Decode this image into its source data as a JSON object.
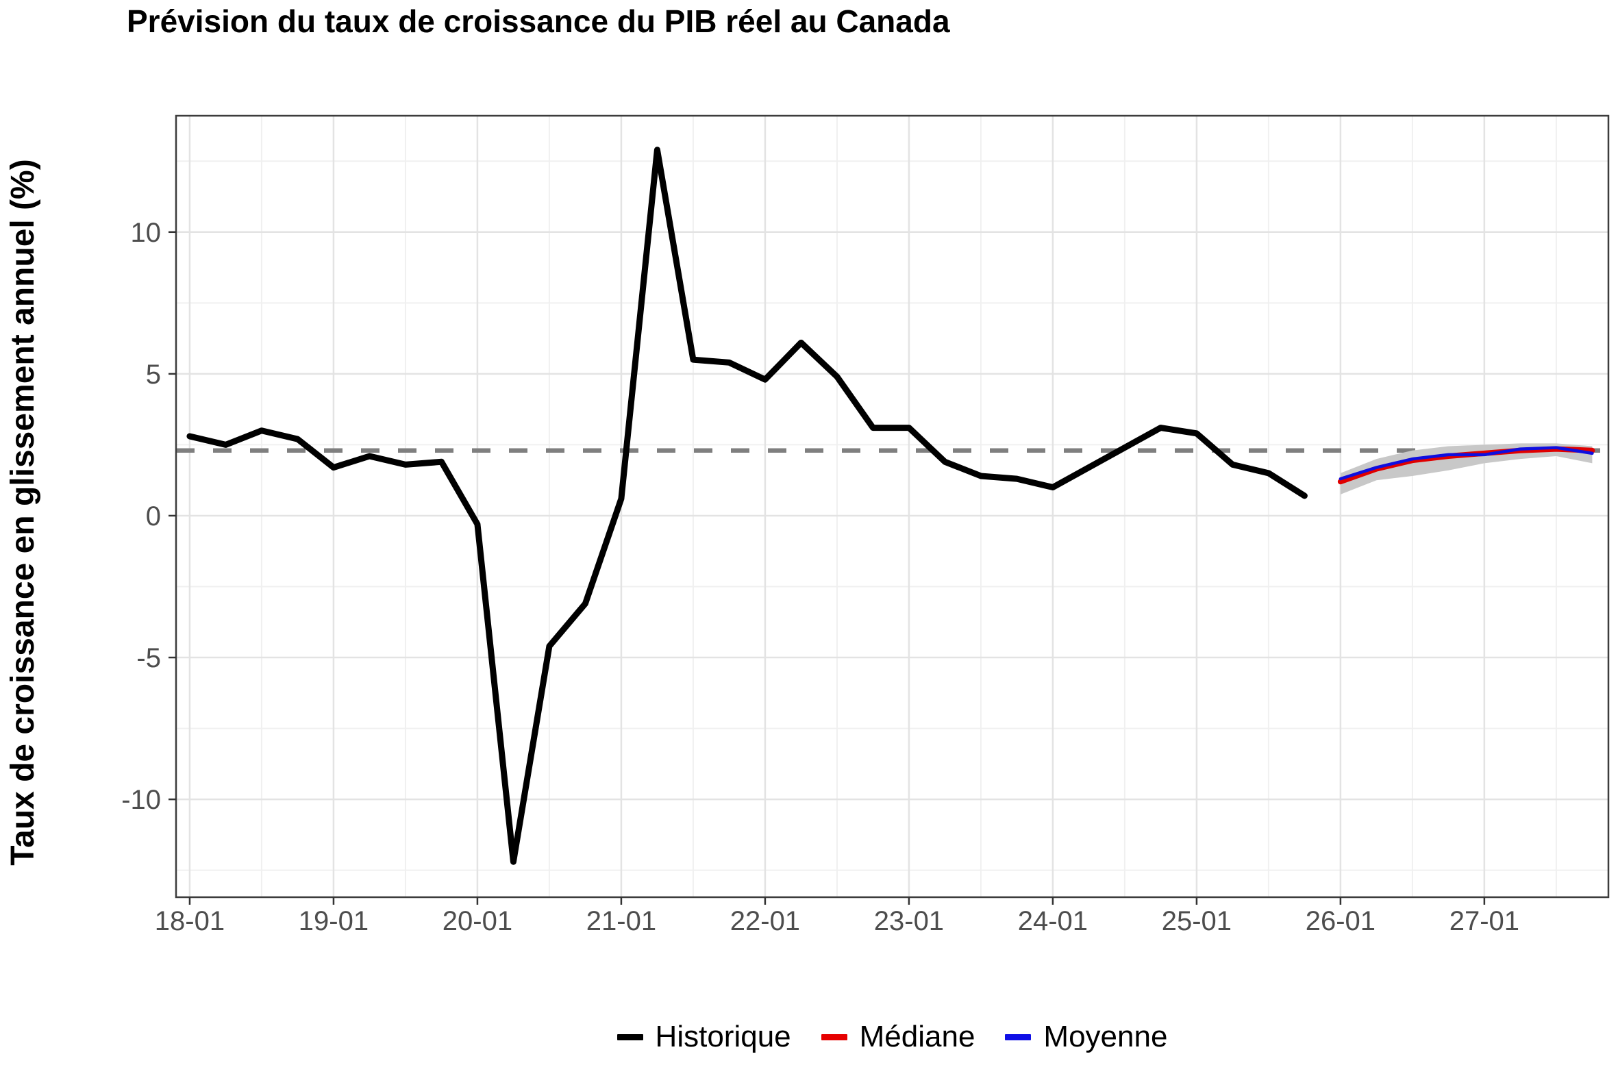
{
  "title": "Prévision du taux de croissance du PIB réel au Canada",
  "legend": {
    "items": [
      {
        "key": "historique",
        "label": "Historique",
        "color": "#000000"
      },
      {
        "key": "mediane",
        "label": "Médiane",
        "color": "#E60000"
      },
      {
        "key": "moyenne",
        "label": "Moyenne",
        "color": "#0F0FE6"
      }
    ]
  },
  "chart_data": {
    "type": "line",
    "title": "Prévision du taux de croissance du PIB réel au Canada",
    "xlabel": "",
    "ylabel": "Taux de croissance en glissement annuel (%)",
    "x_tick_labels": [
      "18-01",
      "19-01",
      "20-01",
      "21-01",
      "22-01",
      "23-01",
      "24-01",
      "25-01",
      "26-01",
      "27-01"
    ],
    "x_tick_quarters": [
      0,
      4,
      8,
      12,
      16,
      20,
      24,
      28,
      32,
      36
    ],
    "x_minor_quarters": [
      2,
      6,
      10,
      14,
      18,
      22,
      26,
      30,
      34,
      38
    ],
    "x_domain_quarters": [
      -0.38,
      39.45
    ],
    "ylim": [
      -13.45,
      14.1
    ],
    "y_ticks": [
      -10,
      -5,
      0,
      5,
      10
    ],
    "y_minor_ticks": [
      -12.5,
      -7.5,
      -2.5,
      2.5,
      7.5,
      12.5
    ],
    "grid": "on",
    "legend_position": "bottom",
    "reference_line": {
      "y": 2.3,
      "style": "dashed",
      "color": "#7F7F7F"
    },
    "colors": {
      "historical": "#000000",
      "median": "#E00000",
      "mean": "#0E0EE0",
      "ribbon": "#C8C8C8",
      "axis_text": "#4D4D4D",
      "panel_border": "#3C3C3C",
      "grid_major": "#E3E3E3",
      "grid_minor": "#F0F0F0"
    },
    "series": [
      {
        "name": "Historique",
        "color": "#000000",
        "start_quarter": 0,
        "periods": [
          "18-01",
          "18-04",
          "18-07",
          "18-10",
          "19-01",
          "19-04",
          "19-07",
          "19-10",
          "20-01",
          "20-04",
          "20-07",
          "20-10",
          "21-01",
          "21-04",
          "21-07",
          "21-10",
          "22-01",
          "22-04",
          "22-07",
          "22-10",
          "23-01",
          "23-04",
          "23-07",
          "23-10",
          "24-01",
          "24-04",
          "24-07",
          "24-10",
          "25-01",
          "25-04",
          "25-07",
          "25-10"
        ],
        "values": [
          2.8,
          2.5,
          3.0,
          2.7,
          1.7,
          2.1,
          1.8,
          1.9,
          -0.3,
          -12.2,
          -4.6,
          -3.1,
          0.6,
          12.9,
          5.5,
          5.4,
          4.8,
          6.1,
          4.9,
          3.1,
          3.1,
          1.9,
          1.4,
          1.3,
          1.0,
          1.7,
          2.4,
          3.1,
          2.9,
          1.8,
          1.5,
          0.7
        ]
      },
      {
        "name": "Médiane",
        "color": "#E00000",
        "start_quarter": 32,
        "periods": [
          "26-01",
          "26-04",
          "26-07",
          "26-10",
          "27-01",
          "27-04",
          "27-07",
          "27-10"
        ],
        "values": [
          1.2,
          1.65,
          1.95,
          2.1,
          2.2,
          2.3,
          2.35,
          2.3
        ]
      },
      {
        "name": "Moyenne",
        "color": "#0E0EE0",
        "start_quarter": 32,
        "periods": [
          "26-01",
          "26-04",
          "26-07",
          "26-10",
          "27-01",
          "27-04",
          "27-07",
          "27-10"
        ],
        "values": [
          1.3,
          1.7,
          2.0,
          2.15,
          2.15,
          2.35,
          2.4,
          2.2
        ]
      }
    ],
    "uncertainty_ribbon": {
      "start_quarter": 32,
      "periods": [
        "26-01",
        "26-04",
        "26-07",
        "26-10",
        "27-01",
        "27-04",
        "27-07",
        "27-10"
      ],
      "upper": [
        1.5,
        2.0,
        2.3,
        2.45,
        2.5,
        2.55,
        2.55,
        2.45
      ],
      "lower": [
        0.75,
        1.25,
        1.4,
        1.6,
        1.85,
        2.0,
        2.1,
        1.85
      ],
      "color": "#C8C8C8"
    }
  }
}
